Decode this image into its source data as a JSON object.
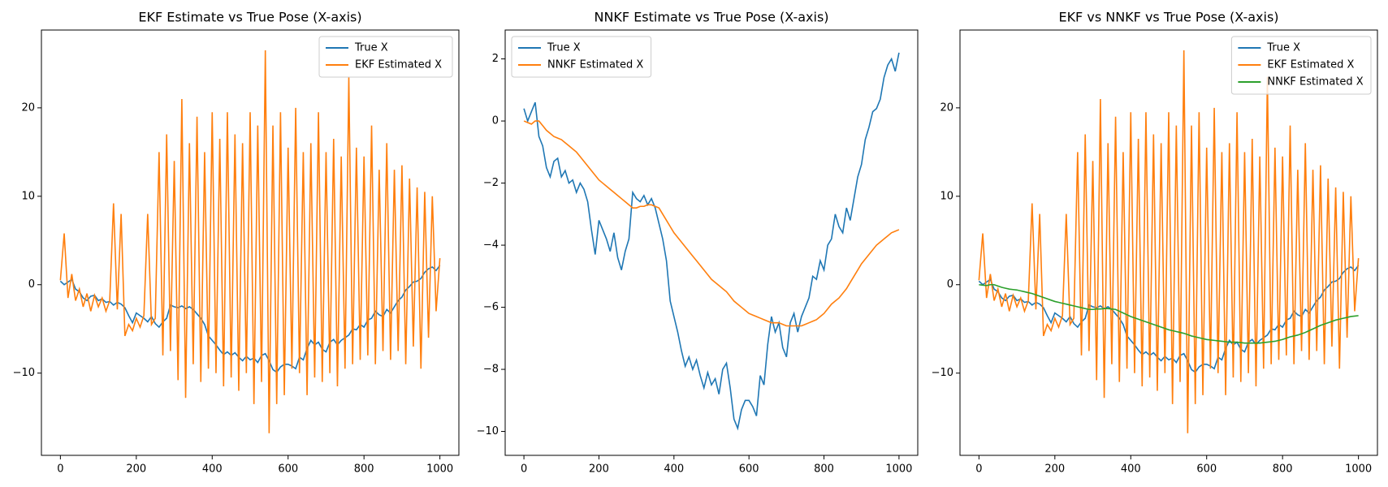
{
  "chart_data": [
    {
      "type": "line",
      "title": "EKF Estimate vs True Pose (X-axis)",
      "legend": "upper right",
      "grid": false,
      "x": [
        0,
        10,
        20,
        30,
        40,
        50,
        60,
        70,
        80,
        90,
        100,
        110,
        120,
        130,
        140,
        150,
        160,
        170,
        180,
        190,
        200,
        210,
        220,
        230,
        240,
        250,
        260,
        270,
        280,
        290,
        300,
        310,
        320,
        330,
        340,
        350,
        360,
        370,
        380,
        390,
        400,
        410,
        420,
        430,
        440,
        450,
        460,
        470,
        480,
        490,
        500,
        510,
        520,
        530,
        540,
        550,
        560,
        570,
        580,
        590,
        600,
        610,
        620,
        630,
        640,
        650,
        660,
        670,
        680,
        690,
        700,
        710,
        720,
        730,
        740,
        750,
        760,
        770,
        780,
        790,
        800,
        810,
        820,
        830,
        840,
        850,
        860,
        870,
        880,
        890,
        900,
        910,
        920,
        930,
        940,
        950,
        960,
        970,
        980,
        990,
        1000
      ],
      "xlim": [
        -50,
        1050
      ],
      "xticks": [
        0,
        200,
        400,
        600,
        800,
        1000
      ],
      "ylim": [
        -19.3,
        28.8
      ],
      "yticks": [
        {
          "value": -10,
          "label": "−10"
        },
        0,
        10,
        20
      ],
      "series": [
        {
          "name": "True X",
          "color": "#1f77b4",
          "values": [
            0.4,
            0.0,
            0.3,
            0.6,
            -0.5,
            -0.8,
            -1.5,
            -1.8,
            -1.3,
            -1.2,
            -1.8,
            -1.6,
            -2.0,
            -1.9,
            -2.3,
            -2.0,
            -2.2,
            -2.6,
            -3.5,
            -4.3,
            -3.2,
            -3.5,
            -3.8,
            -4.2,
            -3.6,
            -4.4,
            -4.8,
            -4.2,
            -3.8,
            -2.3,
            -2.5,
            -2.6,
            -2.4,
            -2.7,
            -2.5,
            -2.8,
            -3.3,
            -3.8,
            -4.5,
            -5.8,
            -6.3,
            -6.8,
            -7.4,
            -7.9,
            -7.6,
            -8.0,
            -7.7,
            -8.2,
            -8.6,
            -8.1,
            -8.5,
            -8.3,
            -8.8,
            -8.0,
            -7.8,
            -8.6,
            -9.6,
            -9.9,
            -9.3,
            -9.0,
            -9.0,
            -9.2,
            -9.5,
            -8.2,
            -8.5,
            -7.2,
            -6.3,
            -6.8,
            -6.5,
            -7.3,
            -7.6,
            -6.5,
            -6.2,
            -6.8,
            -6.3,
            -6.0,
            -5.7,
            -5.0,
            -5.1,
            -4.5,
            -4.8,
            -4.0,
            -3.8,
            -3.0,
            -3.4,
            -3.6,
            -2.8,
            -3.2,
            -2.5,
            -1.8,
            -1.4,
            -0.6,
            -0.2,
            0.3,
            0.4,
            0.7,
            1.4,
            1.8,
            2.0,
            1.6,
            2.2
          ]
        },
        {
          "name": "EKF Estimated X",
          "color": "#ff7f0e",
          "values": [
            0.5,
            5.8,
            -1.5,
            1.2,
            -1.8,
            -0.5,
            -2.5,
            -1.0,
            -3.0,
            -1.2,
            -2.5,
            -1.5,
            -3.0,
            -1.8,
            9.2,
            -2.8,
            8.0,
            -5.8,
            -4.5,
            -5.2,
            -3.8,
            -4.8,
            -3.5,
            8.0,
            -4.5,
            -3.8,
            15.0,
            -8.0,
            17.0,
            -7.5,
            14.0,
            -10.8,
            21.0,
            -12.8,
            16.0,
            -9.0,
            19.0,
            -11.0,
            15.0,
            -9.5,
            19.5,
            -10.0,
            16.5,
            -11.5,
            19.5,
            -10.5,
            17.0,
            -12.0,
            16.0,
            -10.0,
            19.5,
            -13.5,
            18.0,
            -11.0,
            26.5,
            -16.8,
            18.0,
            -13.5,
            19.5,
            -12.5,
            15.5,
            -9.5,
            20.0,
            -10.0,
            15.0,
            -12.5,
            16.0,
            -10.5,
            19.5,
            -11.0,
            15.0,
            -10.0,
            16.5,
            -11.5,
            14.5,
            -9.5,
            23.5,
            -9.0,
            15.5,
            -8.5,
            14.5,
            -8.0,
            18.0,
            -9.0,
            13.0,
            -7.5,
            16.0,
            -8.5,
            13.0,
            -7.5,
            13.5,
            -9.0,
            12.0,
            -7.0,
            11.0,
            -9.5,
            10.5,
            -6.0,
            10.0,
            -3.0,
            3.0
          ]
        }
      ]
    },
    {
      "type": "line",
      "title": "NNKF Estimate vs True Pose (X-axis)",
      "legend": "upper left",
      "grid": false,
      "x": [
        0,
        10,
        20,
        30,
        40,
        50,
        60,
        70,
        80,
        90,
        100,
        110,
        120,
        130,
        140,
        150,
        160,
        170,
        180,
        190,
        200,
        210,
        220,
        230,
        240,
        250,
        260,
        270,
        280,
        290,
        300,
        310,
        320,
        330,
        340,
        350,
        360,
        370,
        380,
        390,
        400,
        410,
        420,
        430,
        440,
        450,
        460,
        470,
        480,
        490,
        500,
        510,
        520,
        530,
        540,
        550,
        560,
        570,
        580,
        590,
        600,
        610,
        620,
        630,
        640,
        650,
        660,
        670,
        680,
        690,
        700,
        710,
        720,
        730,
        740,
        750,
        760,
        770,
        780,
        790,
        800,
        810,
        820,
        830,
        840,
        850,
        860,
        870,
        880,
        890,
        900,
        910,
        920,
        930,
        940,
        950,
        960,
        970,
        980,
        990,
        1000
      ],
      "xlim": [
        -50,
        1050
      ],
      "xticks": [
        0,
        200,
        400,
        600,
        800,
        1000
      ],
      "ylim": [
        -10.77,
        2.93
      ],
      "yticks": [
        {
          "value": -10,
          "label": "−10"
        },
        {
          "value": -8,
          "label": "−8"
        },
        {
          "value": -6,
          "label": "−6"
        },
        {
          "value": -4,
          "label": "−4"
        },
        {
          "value": -2,
          "label": "−2"
        },
        0,
        2
      ],
      "series": [
        {
          "name": "True X",
          "color": "#1f77b4",
          "values": [
            0.4,
            0.0,
            0.3,
            0.6,
            -0.5,
            -0.8,
            -1.5,
            -1.8,
            -1.3,
            -1.2,
            -1.8,
            -1.6,
            -2.0,
            -1.9,
            -2.3,
            -2.0,
            -2.2,
            -2.6,
            -3.5,
            -4.3,
            -3.2,
            -3.5,
            -3.8,
            -4.2,
            -3.6,
            -4.4,
            -4.8,
            -4.2,
            -3.8,
            -2.3,
            -2.5,
            -2.6,
            -2.4,
            -2.7,
            -2.5,
            -2.8,
            -3.3,
            -3.8,
            -4.5,
            -5.8,
            -6.3,
            -6.8,
            -7.4,
            -7.9,
            -7.6,
            -8.0,
            -7.7,
            -8.2,
            -8.6,
            -8.1,
            -8.5,
            -8.3,
            -8.8,
            -8.0,
            -7.8,
            -8.6,
            -9.6,
            -9.9,
            -9.3,
            -9.0,
            -9.0,
            -9.2,
            -9.5,
            -8.2,
            -8.5,
            -7.2,
            -6.3,
            -6.8,
            -6.5,
            -7.3,
            -7.6,
            -6.5,
            -6.2,
            -6.8,
            -6.3,
            -6.0,
            -5.7,
            -5.0,
            -5.1,
            -4.5,
            -4.8,
            -4.0,
            -3.8,
            -3.0,
            -3.4,
            -3.6,
            -2.8,
            -3.2,
            -2.5,
            -1.8,
            -1.4,
            -0.6,
            -0.2,
            0.3,
            0.4,
            0.7,
            1.4,
            1.8,
            2.0,
            1.6,
            2.2
          ]
        },
        {
          "name": "NNKF Estimated X",
          "color": "#ff7f0e",
          "values": [
            0.0,
            -0.05,
            -0.1,
            0.0,
            0.0,
            -0.15,
            -0.3,
            -0.4,
            -0.5,
            -0.55,
            -0.6,
            -0.7,
            -0.8,
            -0.9,
            -1.0,
            -1.15,
            -1.3,
            -1.45,
            -1.6,
            -1.75,
            -1.9,
            -2.0,
            -2.1,
            -2.2,
            -2.3,
            -2.4,
            -2.5,
            -2.6,
            -2.7,
            -2.8,
            -2.8,
            -2.75,
            -2.75,
            -2.7,
            -2.7,
            -2.75,
            -2.8,
            -3.0,
            -3.2,
            -3.4,
            -3.6,
            -3.75,
            -3.9,
            -4.05,
            -4.2,
            -4.35,
            -4.5,
            -4.65,
            -4.8,
            -4.95,
            -5.1,
            -5.2,
            -5.3,
            -5.4,
            -5.5,
            -5.65,
            -5.8,
            -5.9,
            -6.0,
            -6.1,
            -6.2,
            -6.25,
            -6.3,
            -6.35,
            -6.4,
            -6.45,
            -6.5,
            -6.5,
            -6.5,
            -6.55,
            -6.6,
            -6.6,
            -6.6,
            -6.6,
            -6.6,
            -6.55,
            -6.5,
            -6.45,
            -6.4,
            -6.3,
            -6.2,
            -6.05,
            -5.9,
            -5.8,
            -5.7,
            -5.55,
            -5.4,
            -5.2,
            -5.0,
            -4.8,
            -4.6,
            -4.45,
            -4.3,
            -4.15,
            -4.0,
            -3.9,
            -3.8,
            -3.7,
            -3.6,
            -3.55,
            -3.5
          ]
        }
      ]
    },
    {
      "type": "line",
      "title": "EKF vs NNKF vs True Pose (X-axis)",
      "legend": "upper right",
      "grid": false,
      "x": [
        0,
        10,
        20,
        30,
        40,
        50,
        60,
        70,
        80,
        90,
        100,
        110,
        120,
        130,
        140,
        150,
        160,
        170,
        180,
        190,
        200,
        210,
        220,
        230,
        240,
        250,
        260,
        270,
        280,
        290,
        300,
        310,
        320,
        330,
        340,
        350,
        360,
        370,
        380,
        390,
        400,
        410,
        420,
        430,
        440,
        450,
        460,
        470,
        480,
        490,
        500,
        510,
        520,
        530,
        540,
        550,
        560,
        570,
        580,
        590,
        600,
        610,
        620,
        630,
        640,
        650,
        660,
        670,
        680,
        690,
        700,
        710,
        720,
        730,
        740,
        750,
        760,
        770,
        780,
        790,
        800,
        810,
        820,
        830,
        840,
        850,
        860,
        870,
        880,
        890,
        900,
        910,
        920,
        930,
        940,
        950,
        960,
        970,
        980,
        990,
        1000
      ],
      "xlim": [
        -50,
        1050
      ],
      "xticks": [
        0,
        200,
        400,
        600,
        800,
        1000
      ],
      "ylim": [
        -19.3,
        28.8
      ],
      "yticks": [
        {
          "value": -10,
          "label": "−10"
        },
        0,
        10,
        20
      ],
      "series": [
        {
          "name": "True X",
          "color": "#1f77b4",
          "values": [
            0.4,
            0.0,
            0.3,
            0.6,
            -0.5,
            -0.8,
            -1.5,
            -1.8,
            -1.3,
            -1.2,
            -1.8,
            -1.6,
            -2.0,
            -1.9,
            -2.3,
            -2.0,
            -2.2,
            -2.6,
            -3.5,
            -4.3,
            -3.2,
            -3.5,
            -3.8,
            -4.2,
            -3.6,
            -4.4,
            -4.8,
            -4.2,
            -3.8,
            -2.3,
            -2.5,
            -2.6,
            -2.4,
            -2.7,
            -2.5,
            -2.8,
            -3.3,
            -3.8,
            -4.5,
            -5.8,
            -6.3,
            -6.8,
            -7.4,
            -7.9,
            -7.6,
            -8.0,
            -7.7,
            -8.2,
            -8.6,
            -8.1,
            -8.5,
            -8.3,
            -8.8,
            -8.0,
            -7.8,
            -8.6,
            -9.6,
            -9.9,
            -9.3,
            -9.0,
            -9.0,
            -9.2,
            -9.5,
            -8.2,
            -8.5,
            -7.2,
            -6.3,
            -6.8,
            -6.5,
            -7.3,
            -7.6,
            -6.5,
            -6.2,
            -6.8,
            -6.3,
            -6.0,
            -5.7,
            -5.0,
            -5.1,
            -4.5,
            -4.8,
            -4.0,
            -3.8,
            -3.0,
            -3.4,
            -3.6,
            -2.8,
            -3.2,
            -2.5,
            -1.8,
            -1.4,
            -0.6,
            -0.2,
            0.3,
            0.4,
            0.7,
            1.4,
            1.8,
            2.0,
            1.6,
            2.2
          ]
        },
        {
          "name": "EKF Estimated X",
          "color": "#ff7f0e",
          "values": [
            0.5,
            5.8,
            -1.5,
            1.2,
            -1.8,
            -0.5,
            -2.5,
            -1.0,
            -3.0,
            -1.2,
            -2.5,
            -1.5,
            -3.0,
            -1.8,
            9.2,
            -2.8,
            8.0,
            -5.8,
            -4.5,
            -5.2,
            -3.8,
            -4.8,
            -3.5,
            8.0,
            -4.5,
            -3.8,
            15.0,
            -8.0,
            17.0,
            -7.5,
            14.0,
            -10.8,
            21.0,
            -12.8,
            16.0,
            -9.0,
            19.0,
            -11.0,
            15.0,
            -9.5,
            19.5,
            -10.0,
            16.5,
            -11.5,
            19.5,
            -10.5,
            17.0,
            -12.0,
            16.0,
            -10.0,
            19.5,
            -13.5,
            18.0,
            -11.0,
            26.5,
            -16.8,
            18.0,
            -13.5,
            19.5,
            -12.5,
            15.5,
            -9.5,
            20.0,
            -10.0,
            15.0,
            -12.5,
            16.0,
            -10.5,
            19.5,
            -11.0,
            15.0,
            -10.0,
            16.5,
            -11.5,
            14.5,
            -9.5,
            23.5,
            -9.0,
            15.5,
            -8.5,
            14.5,
            -8.0,
            18.0,
            -9.0,
            13.0,
            -7.5,
            16.0,
            -8.5,
            13.0,
            -7.5,
            13.5,
            -9.0,
            12.0,
            -7.0,
            11.0,
            -9.5,
            10.5,
            -6.0,
            10.0,
            -3.0,
            3.0
          ]
        },
        {
          "name": "NNKF Estimated X",
          "color": "#2ca02c",
          "values": [
            0.0,
            -0.05,
            -0.1,
            0.0,
            0.0,
            -0.15,
            -0.3,
            -0.4,
            -0.5,
            -0.55,
            -0.6,
            -0.7,
            -0.8,
            -0.9,
            -1.0,
            -1.15,
            -1.3,
            -1.45,
            -1.6,
            -1.75,
            -1.9,
            -2.0,
            -2.1,
            -2.2,
            -2.3,
            -2.4,
            -2.5,
            -2.6,
            -2.7,
            -2.8,
            -2.8,
            -2.75,
            -2.75,
            -2.7,
            -2.7,
            -2.75,
            -2.8,
            -3.0,
            -3.2,
            -3.4,
            -3.6,
            -3.75,
            -3.9,
            -4.05,
            -4.2,
            -4.35,
            -4.5,
            -4.65,
            -4.8,
            -4.95,
            -5.1,
            -5.2,
            -5.3,
            -5.4,
            -5.5,
            -5.65,
            -5.8,
            -5.9,
            -6.0,
            -6.1,
            -6.2,
            -6.25,
            -6.3,
            -6.35,
            -6.4,
            -6.45,
            -6.5,
            -6.5,
            -6.5,
            -6.55,
            -6.6,
            -6.6,
            -6.6,
            -6.6,
            -6.6,
            -6.55,
            -6.5,
            -6.45,
            -6.4,
            -6.3,
            -6.2,
            -6.05,
            -5.9,
            -5.8,
            -5.7,
            -5.55,
            -5.4,
            -5.2,
            -5.0,
            -4.8,
            -4.6,
            -4.45,
            -4.3,
            -4.15,
            -4.0,
            -3.9,
            -3.8,
            -3.7,
            -3.6,
            -3.55,
            -3.5
          ]
        }
      ]
    }
  ]
}
